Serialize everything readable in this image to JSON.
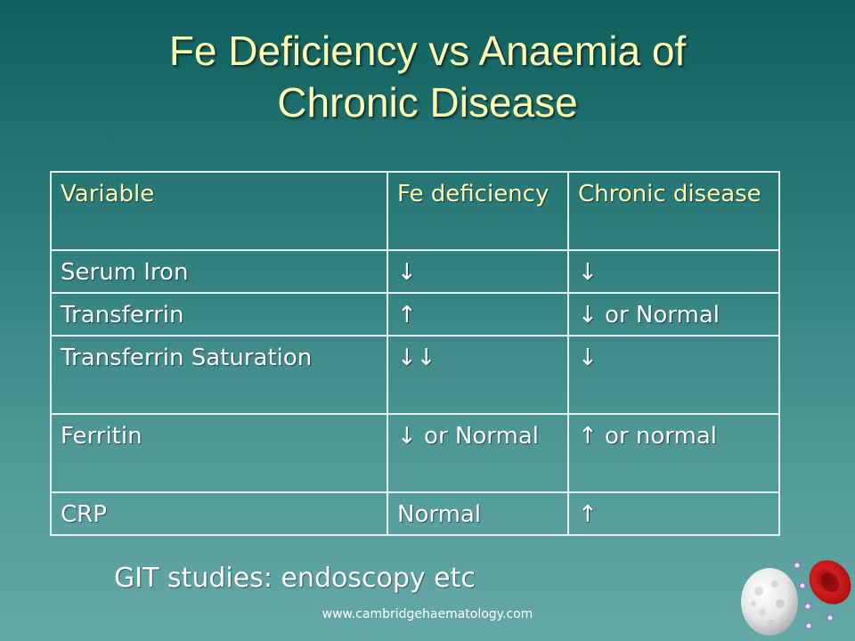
{
  "slide": {
    "title_line1": "Fe Deficiency vs Anaemia of",
    "title_line2": "Chronic Disease",
    "note": "GIT studies: endoscopy etc",
    "footer": "www.cambridgehaematology.com"
  },
  "table": {
    "headers": [
      "Variable",
      "Fe deficiency",
      "Chronic disease"
    ],
    "rows": [
      [
        "Serum Iron",
        "↓",
        "↓"
      ],
      [
        "Transferrin",
        "↑",
        "↓ or Normal"
      ],
      [
        "Transferrin Saturation",
        "↓↓",
        "↓"
      ],
      [
        "Ferritin",
        "↓ or Normal",
        "↑ or normal"
      ],
      [
        "CRP",
        "Normal",
        "↑"
      ]
    ]
  },
  "colors": {
    "title": "#ffffb3",
    "header_text": "#ffffb3",
    "body_text": "#ffffff",
    "background_top": "#0f5f5d",
    "background_bottom": "#65a9a7"
  },
  "icons": [
    "white-blood-cell-icon",
    "red-blood-cell-icon",
    "platelet-icon"
  ]
}
